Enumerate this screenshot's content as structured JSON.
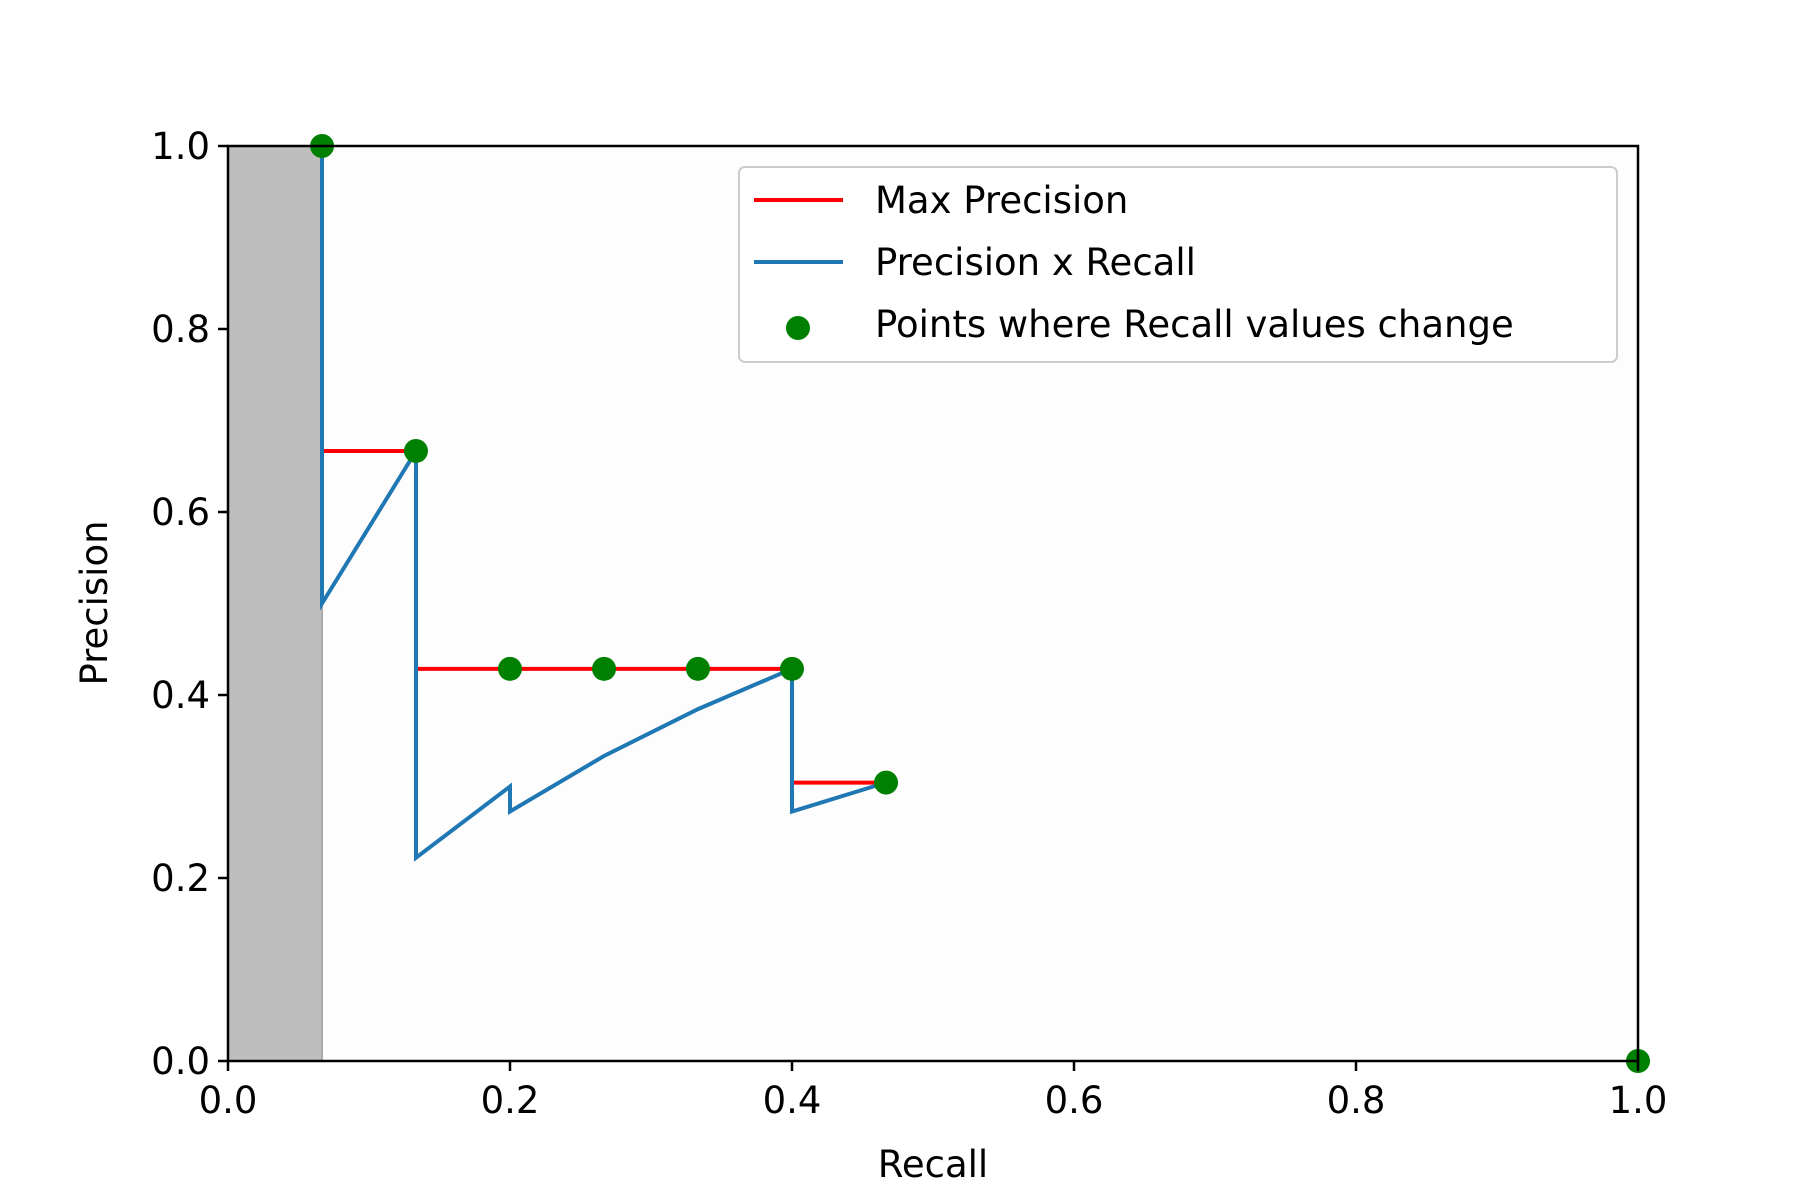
{
  "chart_data": {
    "type": "line",
    "title": "",
    "xlabel": "Recall",
    "ylabel": "Precision",
    "xlim": [
      0.0,
      1.0
    ],
    "ylim": [
      0.0,
      1.0
    ],
    "x_ticks": [
      "0.0",
      "0.2",
      "0.4",
      "0.6",
      "0.8",
      "1.0"
    ],
    "y_ticks": [
      "0.0",
      "0.2",
      "0.4",
      "0.6",
      "0.8",
      "1.0"
    ],
    "grid": false,
    "legend_position": "top-right",
    "shaded_region": {
      "x": [
        0.0,
        0.0667
      ],
      "color": "#bebebe"
    },
    "series": [
      {
        "name": "Max Precision",
        "kind": "step-line",
        "color": "#ff0000",
        "segments": [
          {
            "x": [
              0.0667,
              0.1333
            ],
            "y": 0.6667
          },
          {
            "x": [
              0.1333,
              0.4
            ],
            "y": 0.4286
          },
          {
            "x": [
              0.4,
              0.4667
            ],
            "y": 0.3043
          }
        ]
      },
      {
        "name": "Precision x Recall",
        "kind": "line",
        "color": "#1f77b4",
        "x": [
          0.0667,
          0.0667,
          0.0667,
          0.1333,
          0.1333,
          0.1333,
          0.2,
          0.2,
          0.2667,
          0.3333,
          0.4,
          0.4,
          0.4,
          0.4667
        ],
        "y": [
          1.0,
          0.6667,
          0.5,
          0.6667,
          0.4286,
          0.2222,
          0.3,
          0.2727,
          0.3333,
          0.3846,
          0.4286,
          0.3043,
          0.2727,
          0.3043
        ]
      },
      {
        "name": "Points where Recall values change",
        "kind": "scatter",
        "color": "#008000",
        "x": [
          0.0667,
          0.1333,
          0.2,
          0.2667,
          0.3333,
          0.4,
          0.4667,
          1.0
        ],
        "y": [
          1.0,
          0.6667,
          0.4286,
          0.4286,
          0.4286,
          0.4286,
          0.3043,
          0.0
        ]
      }
    ]
  }
}
